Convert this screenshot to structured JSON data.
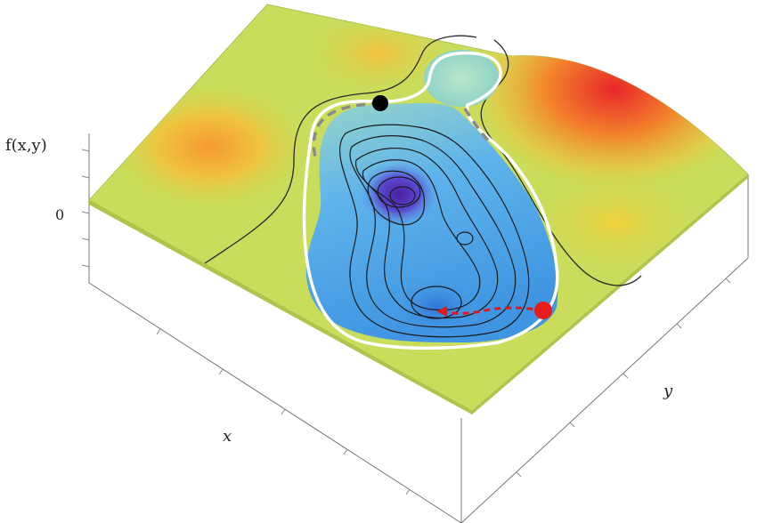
{
  "axes": {
    "z_label": "f(x,y)",
    "z_tick": "0",
    "x_label": "x",
    "y_label": "y"
  },
  "colors": {
    "plane": "#c8dc5a",
    "peak_red": "#e8262a",
    "peak_orange": "#f5a530",
    "basin_blue": "#4aa3e6",
    "basin_deep": "#5a2ab0",
    "level_white": "#ffffff",
    "path_gray": "#888888",
    "path_red": "#e01818",
    "marker_black": "#000000",
    "marker_red": "#e81c1c"
  }
}
